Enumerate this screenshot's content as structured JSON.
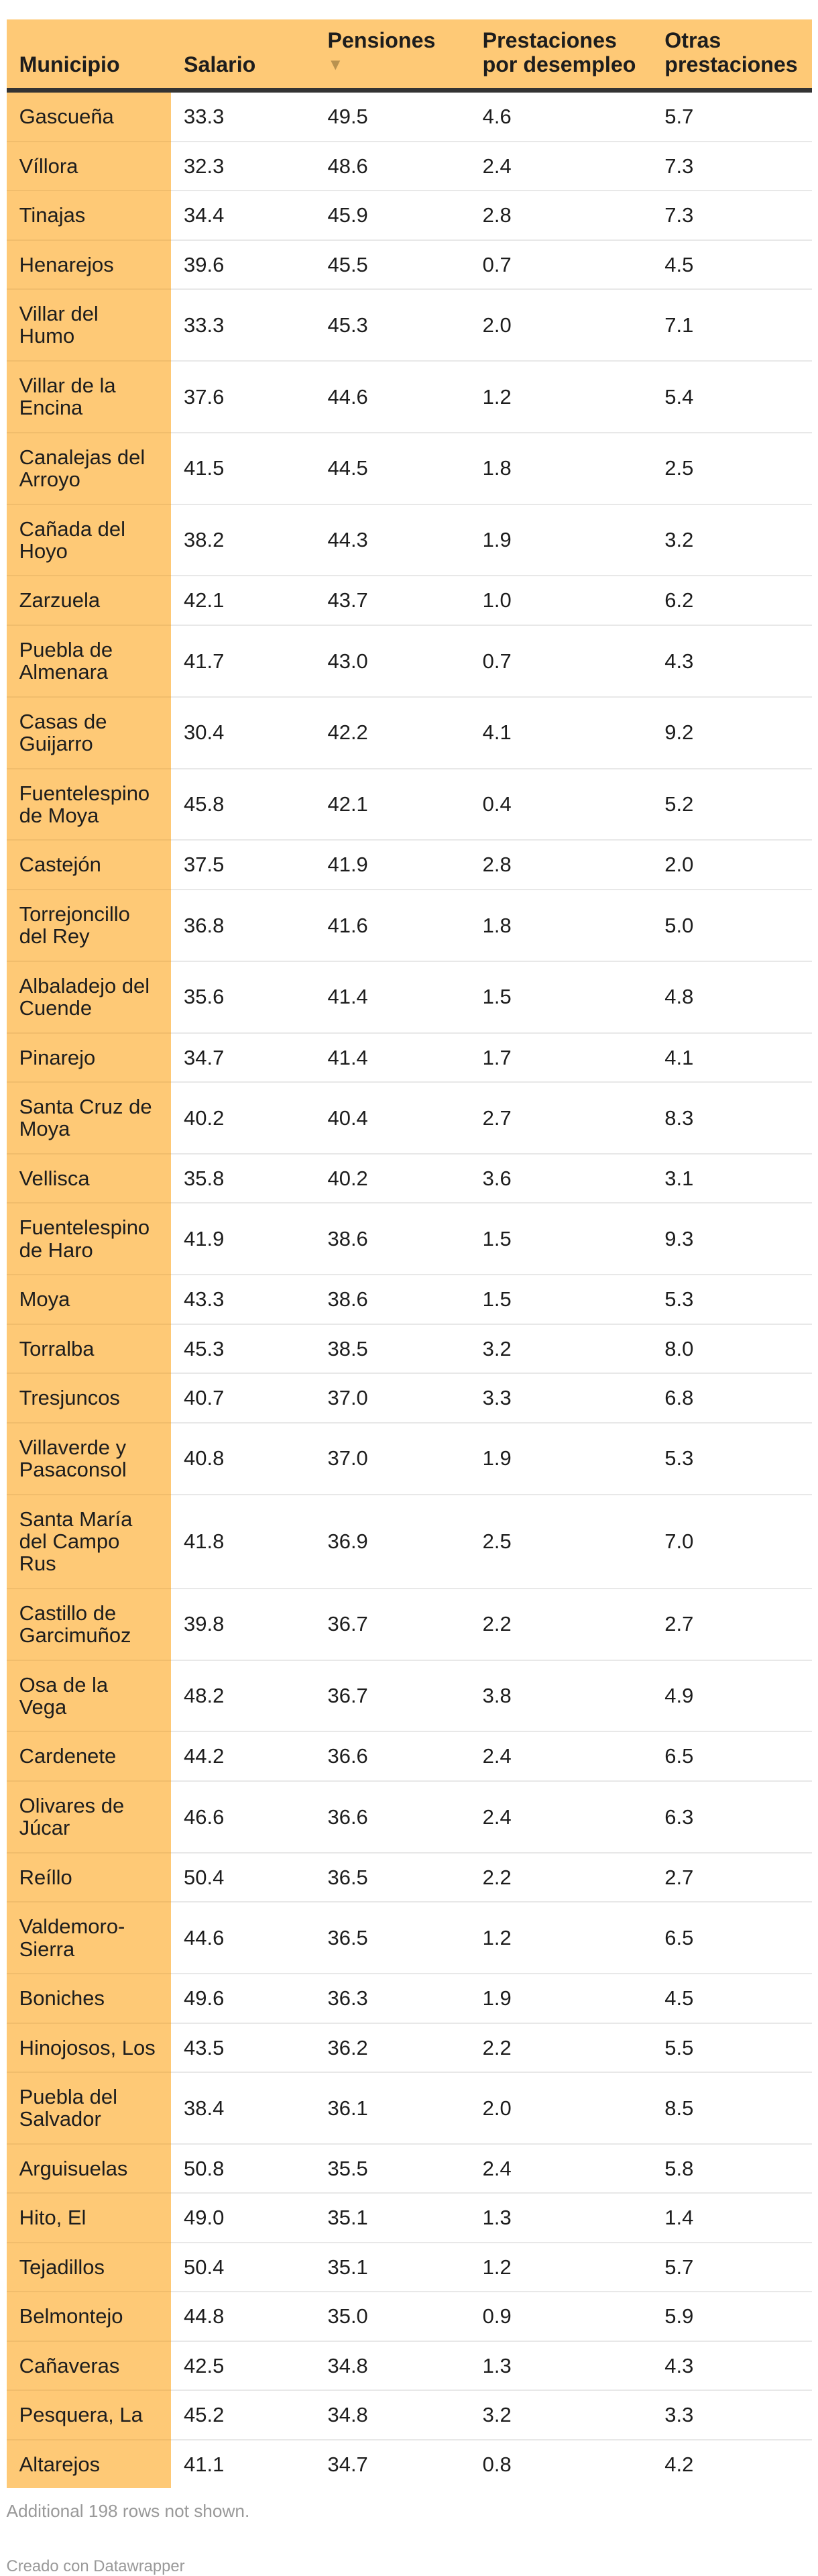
{
  "table": {
    "headers": [
      "Municipio",
      "Salario",
      "Pensiones",
      "Prestaciones por desempleo",
      "Otras prestaciones"
    ],
    "sort_indicator": "▼",
    "rows": [
      [
        "Gascueña",
        "33.3",
        "49.5",
        "4.6",
        "5.7"
      ],
      [
        "Víllora",
        "32.3",
        "48.6",
        "2.4",
        "7.3"
      ],
      [
        "Tinajas",
        "34.4",
        "45.9",
        "2.8",
        "7.3"
      ],
      [
        "Henarejos",
        "39.6",
        "45.5",
        "0.7",
        "4.5"
      ],
      [
        "Villar del Humo",
        "33.3",
        "45.3",
        "2.0",
        "7.1"
      ],
      [
        "Villar de la Encina",
        "37.6",
        "44.6",
        "1.2",
        "5.4"
      ],
      [
        "Canalejas del Arroyo",
        "41.5",
        "44.5",
        "1.8",
        "2.5"
      ],
      [
        "Cañada del Hoyo",
        "38.2",
        "44.3",
        "1.9",
        "3.2"
      ],
      [
        "Zarzuela",
        "42.1",
        "43.7",
        "1.0",
        "6.2"
      ],
      [
        "Puebla de Almenara",
        "41.7",
        "43.0",
        "0.7",
        "4.3"
      ],
      [
        "Casas de Guijarro",
        "30.4",
        "42.2",
        "4.1",
        "9.2"
      ],
      [
        "Fuentelespino de Moya",
        "45.8",
        "42.1",
        "0.4",
        "5.2"
      ],
      [
        "Castejón",
        "37.5",
        "41.9",
        "2.8",
        "2.0"
      ],
      [
        "Torrejoncillo del Rey",
        "36.8",
        "41.6",
        "1.8",
        "5.0"
      ],
      [
        "Albaladejo del Cuende",
        "35.6",
        "41.4",
        "1.5",
        "4.8"
      ],
      [
        "Pinarejo",
        "34.7",
        "41.4",
        "1.7",
        "4.1"
      ],
      [
        "Santa Cruz de Moya",
        "40.2",
        "40.4",
        "2.7",
        "8.3"
      ],
      [
        "Vellisca",
        "35.8",
        "40.2",
        "3.6",
        "3.1"
      ],
      [
        "Fuentelespino de Haro",
        "41.9",
        "38.6",
        "1.5",
        "9.3"
      ],
      [
        "Moya",
        "43.3",
        "38.6",
        "1.5",
        "5.3"
      ],
      [
        "Torralba",
        "45.3",
        "38.5",
        "3.2",
        "8.0"
      ],
      [
        "Tresjuncos",
        "40.7",
        "37.0",
        "3.3",
        "6.8"
      ],
      [
        "Villaverde y Pasaconsol",
        "40.8",
        "37.0",
        "1.9",
        "5.3"
      ],
      [
        "Santa María del Campo Rus",
        "41.8",
        "36.9",
        "2.5",
        "7.0"
      ],
      [
        "Castillo de Garcimuñoz",
        "39.8",
        "36.7",
        "2.2",
        "2.7"
      ],
      [
        "Osa de la Vega",
        "48.2",
        "36.7",
        "3.8",
        "4.9"
      ],
      [
        "Cardenete",
        "44.2",
        "36.6",
        "2.4",
        "6.5"
      ],
      [
        "Olivares de Júcar",
        "46.6",
        "36.6",
        "2.4",
        "6.3"
      ],
      [
        "Reíllo",
        "50.4",
        "36.5",
        "2.2",
        "2.7"
      ],
      [
        "Valdemoro-Sierra",
        "44.6",
        "36.5",
        "1.2",
        "6.5"
      ],
      [
        "Boniches",
        "49.6",
        "36.3",
        "1.9",
        "4.5"
      ],
      [
        "Hinojosos, Los",
        "43.5",
        "36.2",
        "2.2",
        "5.5"
      ],
      [
        "Puebla del Salvador",
        "38.4",
        "36.1",
        "2.0",
        "8.5"
      ],
      [
        "Arguisuelas",
        "50.8",
        "35.5",
        "2.4",
        "5.8"
      ],
      [
        "Hito, El",
        "49.0",
        "35.1",
        "1.3",
        "1.4"
      ],
      [
        "Tejadillos",
        "50.4",
        "35.1",
        "1.2",
        "5.7"
      ],
      [
        "Belmontejo",
        "44.8",
        "35.0",
        "0.9",
        "5.9"
      ],
      [
        "Cañaveras",
        "42.5",
        "34.8",
        "1.3",
        "4.3"
      ],
      [
        "Pesquera, La",
        "45.2",
        "34.8",
        "3.2",
        "3.3"
      ],
      [
        "Altarejos",
        "41.1",
        "34.7",
        "0.8",
        "4.2"
      ]
    ]
  },
  "footer": {
    "notes": "Additional 198 rows not shown.",
    "credit": "Creado con Datawrapper"
  },
  "colors": {
    "highlight": "#fec976",
    "header_rule": "#333333"
  }
}
